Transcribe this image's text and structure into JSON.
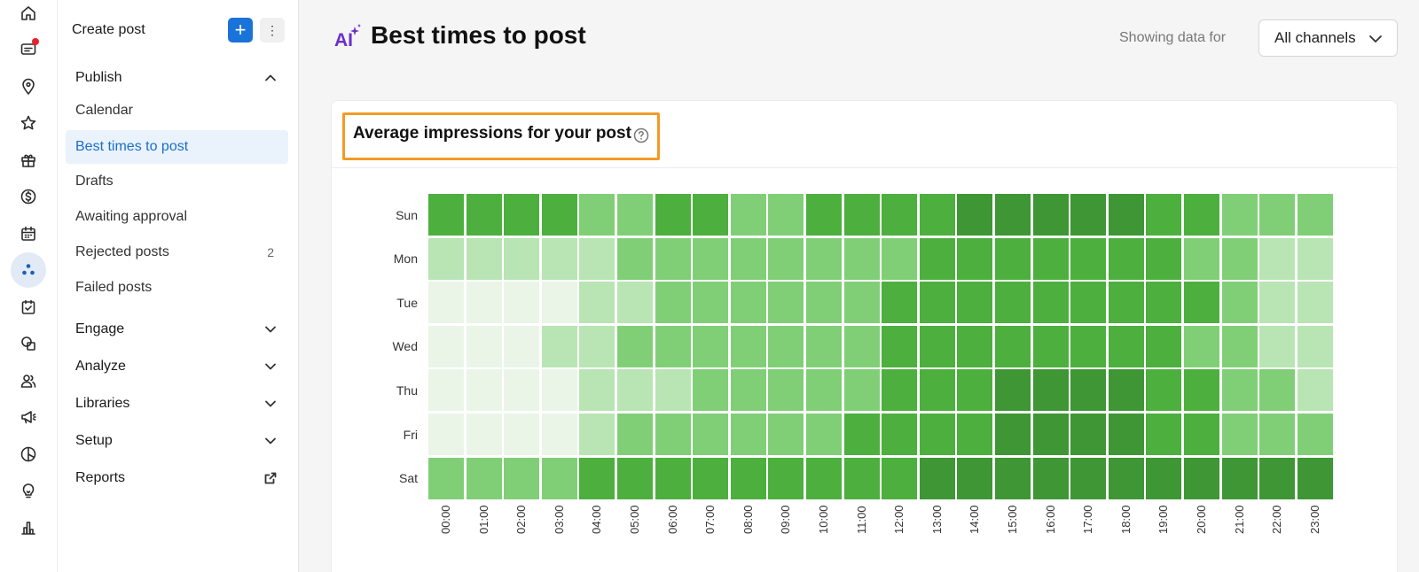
{
  "rail": {
    "icons": [
      "home-icon",
      "messages-icon",
      "location-icon",
      "star-icon",
      "gift-icon",
      "dollar-icon",
      "calendar-icon",
      "publish-icon",
      "task-icon",
      "shapes-icon",
      "people-icon",
      "megaphone-icon",
      "pie-icon",
      "lightbulb-icon",
      "bar-chart-icon"
    ],
    "active": "publish-icon",
    "notification_icon": "messages-icon",
    "notification_color": "#e8232b"
  },
  "nav": {
    "create_post_label": "Create post",
    "plus_label": "+",
    "more_label": "⋮",
    "publish_label": "Publish",
    "publish_items": [
      {
        "label": "Calendar",
        "count": ""
      },
      {
        "label": "Best times to post",
        "count": ""
      },
      {
        "label": "Drafts",
        "count": ""
      },
      {
        "label": "Awaiting approval",
        "count": ""
      },
      {
        "label": "Rejected posts",
        "count": "2"
      },
      {
        "label": "Failed posts",
        "count": ""
      }
    ],
    "active_item": "Best times to post",
    "sections": [
      "Engage",
      "Analyze",
      "Libraries",
      "Setup"
    ],
    "reports_label": "Reports"
  },
  "header": {
    "title": "Best times to post",
    "showing_label": "Showing data for",
    "channel_value": "All channels"
  },
  "card": {
    "title": "Average impressions for your post",
    "highlight_color": "#f39a25"
  },
  "colors": {
    "accent": "#1a73d9",
    "levels": [
      "#eaf5e8",
      "#b9e4b4",
      "#80cf77",
      "#4caf3e",
      "#3e9635"
    ]
  },
  "chart_data": {
    "type": "heatmap",
    "title": "Average impressions for your post",
    "rows": [
      "Sun",
      "Mon",
      "Tue",
      "Wed",
      "Thu",
      "Fri",
      "Sat"
    ],
    "columns": [
      "00:00",
      "01:00",
      "02:00",
      "03:00",
      "04:00",
      "05:00",
      "06:00",
      "07:00",
      "08:00",
      "09:00",
      "10:00",
      "11:00",
      "12:00",
      "13:00",
      "14:00",
      "15:00",
      "16:00",
      "17:00",
      "18:00",
      "19:00",
      "20:00",
      "21:00",
      "22:00",
      "23:00"
    ],
    "scale": "relative intensity levels 0 (lowest) to 4 (highest)",
    "values": [
      [
        3,
        3,
        3,
        3,
        2,
        2,
        3,
        3,
        2,
        2,
        3,
        3,
        3,
        3,
        4,
        4,
        4,
        4,
        4,
        3,
        3,
        2,
        2,
        2
      ],
      [
        1,
        1,
        1,
        1,
        1,
        2,
        2,
        2,
        2,
        2,
        2,
        2,
        2,
        3,
        3,
        3,
        3,
        3,
        3,
        3,
        2,
        2,
        1,
        1
      ],
      [
        0,
        0,
        0,
        0,
        1,
        1,
        2,
        2,
        2,
        2,
        2,
        2,
        3,
        3,
        3,
        3,
        3,
        3,
        3,
        3,
        3,
        2,
        1,
        1
      ],
      [
        0,
        0,
        0,
        1,
        1,
        2,
        2,
        2,
        2,
        2,
        2,
        2,
        3,
        3,
        3,
        3,
        3,
        3,
        3,
        3,
        2,
        2,
        1,
        1
      ],
      [
        0,
        0,
        0,
        0,
        1,
        1,
        1,
        2,
        2,
        2,
        2,
        2,
        3,
        3,
        3,
        4,
        4,
        4,
        4,
        3,
        3,
        2,
        2,
        1
      ],
      [
        0,
        0,
        0,
        0,
        1,
        2,
        2,
        2,
        2,
        2,
        2,
        3,
        3,
        3,
        3,
        4,
        4,
        4,
        4,
        3,
        3,
        2,
        2,
        2
      ],
      [
        2,
        2,
        2,
        2,
        3,
        3,
        3,
        3,
        3,
        3,
        3,
        3,
        3,
        4,
        4,
        4,
        4,
        4,
        4,
        4,
        4,
        4,
        4,
        4
      ]
    ]
  }
}
